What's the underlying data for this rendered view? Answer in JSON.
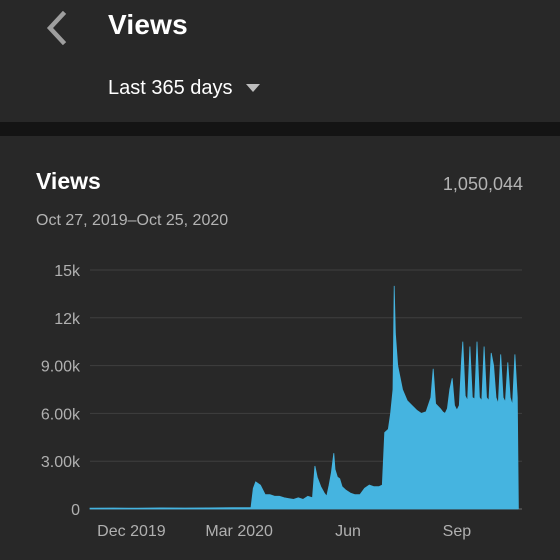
{
  "header": {
    "back_icon": "chevron-left-icon",
    "title": "Views",
    "range_label": "Last 365 days",
    "range_icon": "caret-down-icon"
  },
  "card": {
    "title": "Views",
    "total": "1,050,044",
    "date_range": "Oct 27, 2019–Oct 25, 2020"
  },
  "colors": {
    "background": "#212121",
    "surface": "#282828",
    "accent": "#45b4e0"
  },
  "chart_data": {
    "type": "area",
    "title": "",
    "xlabel": "",
    "ylabel": "",
    "ylim": [
      0,
      15000
    ],
    "grid": true,
    "y_ticks": [
      {
        "value": 15000,
        "label": "15k"
      },
      {
        "value": 12000,
        "label": "12k"
      },
      {
        "value": 9000,
        "label": "9.00k"
      },
      {
        "value": 6000,
        "label": "6.00k"
      },
      {
        "value": 3000,
        "label": "3.00k"
      },
      {
        "value": 0,
        "label": "0"
      }
    ],
    "x_ticks": [
      {
        "day": 35,
        "label": "Dec 2019"
      },
      {
        "day": 126,
        "label": "Mar 2020"
      },
      {
        "day": 218,
        "label": "Jun"
      },
      {
        "day": 310,
        "label": "Sep"
      }
    ],
    "x_range_days": [
      0,
      365
    ],
    "series": [
      {
        "points": [
          [
            0,
            50
          ],
          [
            20,
            60
          ],
          [
            40,
            50
          ],
          [
            60,
            70
          ],
          [
            80,
            60
          ],
          [
            100,
            70
          ],
          [
            120,
            80
          ],
          [
            136,
            90
          ],
          [
            138,
            1300
          ],
          [
            140,
            1700
          ],
          [
            144,
            1500
          ],
          [
            148,
            900
          ],
          [
            152,
            900
          ],
          [
            156,
            800
          ],
          [
            160,
            800
          ],
          [
            164,
            700
          ],
          [
            168,
            650
          ],
          [
            172,
            600
          ],
          [
            176,
            700
          ],
          [
            180,
            600
          ],
          [
            184,
            800
          ],
          [
            188,
            700
          ],
          [
            190,
            2700
          ],
          [
            192,
            2000
          ],
          [
            195,
            1400
          ],
          [
            198,
            1000
          ],
          [
            200,
            800
          ],
          [
            202,
            1500
          ],
          [
            204,
            2300
          ],
          [
            206,
            3500
          ],
          [
            207,
            2500
          ],
          [
            209,
            2000
          ],
          [
            211,
            1900
          ],
          [
            213,
            1400
          ],
          [
            216,
            1200
          ],
          [
            220,
            1000
          ],
          [
            224,
            900
          ],
          [
            228,
            900
          ],
          [
            232,
            1300
          ],
          [
            236,
            1500
          ],
          [
            240,
            1400
          ],
          [
            244,
            1400
          ],
          [
            247,
            1500
          ],
          [
            249,
            4800
          ],
          [
            252,
            5000
          ],
          [
            254,
            6000
          ],
          [
            256,
            7500
          ],
          [
            257,
            14000
          ],
          [
            258,
            11000
          ],
          [
            260,
            9000
          ],
          [
            264,
            7500
          ],
          [
            268,
            6800
          ],
          [
            272,
            6500
          ],
          [
            276,
            6200
          ],
          [
            280,
            6000
          ],
          [
            284,
            6100
          ],
          [
            288,
            7000
          ],
          [
            290,
            8800
          ],
          [
            292,
            6600
          ],
          [
            296,
            6300
          ],
          [
            298,
            6100
          ],
          [
            300,
            6000
          ],
          [
            302,
            6300
          ],
          [
            304,
            7500
          ],
          [
            306,
            8200
          ],
          [
            308,
            6500
          ],
          [
            310,
            6200
          ],
          [
            312,
            6500
          ],
          [
            314,
            9400
          ],
          [
            315,
            10500
          ],
          [
            317,
            7100
          ],
          [
            319,
            6800
          ],
          [
            321,
            10200
          ],
          [
            323,
            7000
          ],
          [
            325,
            6900
          ],
          [
            327,
            10500
          ],
          [
            329,
            7000
          ],
          [
            331,
            6800
          ],
          [
            333,
            10200
          ],
          [
            335,
            7000
          ],
          [
            337,
            6800
          ],
          [
            339,
            9800
          ],
          [
            341,
            9000
          ],
          [
            343,
            7000
          ],
          [
            345,
            6600
          ],
          [
            347,
            9700
          ],
          [
            349,
            7000
          ],
          [
            351,
            6700
          ],
          [
            353,
            9200
          ],
          [
            355,
            7000
          ],
          [
            357,
            6500
          ],
          [
            359,
            9700
          ],
          [
            361,
            7000
          ],
          [
            362,
            0
          ]
        ]
      }
    ]
  }
}
